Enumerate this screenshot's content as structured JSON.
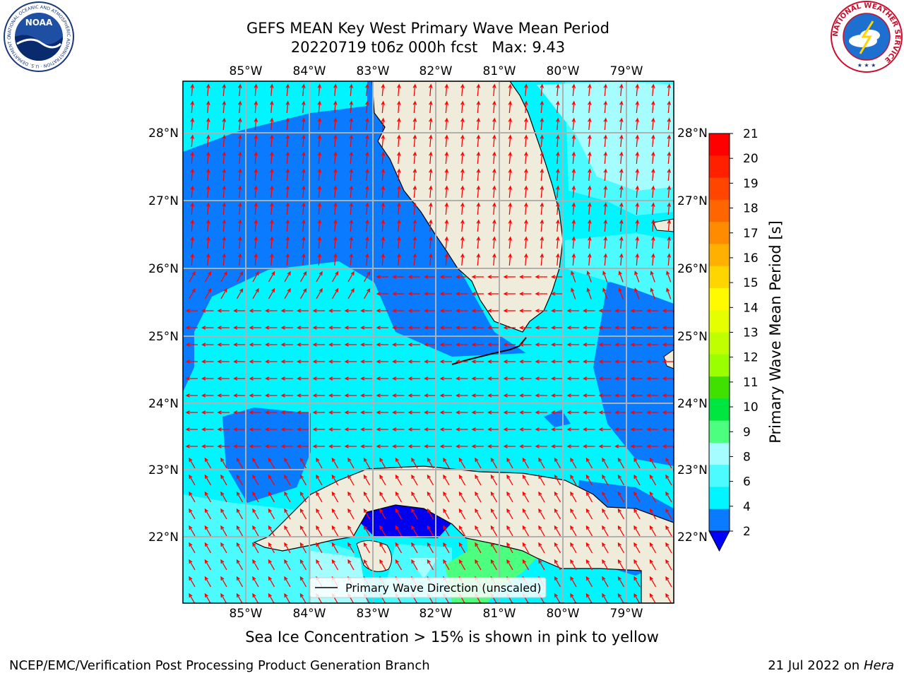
{
  "header": {
    "title_line1": "GEFS MEAN Key West Primary Wave Mean Period",
    "title_line2": "20220719 t06z 000h fcst   Max: 9.43"
  },
  "logos": {
    "left": "NOAA",
    "left_ring_text": "NATIONAL OCEANIC AND ATMOSPHERIC ADMINISTRATION · U.S. DEPARTMENT OF COMMERCE ·",
    "right_ring_text": "NATIONAL WEATHER SERVICE"
  },
  "map": {
    "lon_labels": [
      "85°W",
      "84°W",
      "83°W",
      "82°W",
      "81°W",
      "80°W",
      "79°W"
    ],
    "lat_labels": [
      "28°N",
      "27°N",
      "26°N",
      "25°N",
      "24°N",
      "23°N",
      "22°N"
    ],
    "legend_label": "Primary Wave Direction (unscaled)",
    "grid": true,
    "colors": {
      "land": "#efecdc",
      "c2_4": "#0a7bff",
      "c4_6": "#00f5ff",
      "c6_8": "#4cfbff",
      "c8_9": "#a6fdff",
      "c9_10": "#4cff7f",
      "below_2": "#0000f0",
      "arrow": "#ff0000"
    }
  },
  "colorbar": {
    "label": "Primary Wave Mean Period [s]",
    "ticks": [
      "21",
      "20",
      "19",
      "18",
      "17",
      "16",
      "15",
      "14",
      "13",
      "12",
      "11",
      "10",
      "9",
      "8",
      "6",
      "4",
      "2"
    ],
    "colors": [
      "#ff0000",
      "#ff2000",
      "#ff4500",
      "#ff6500",
      "#ff8b00",
      "#ffb000",
      "#ffd500",
      "#fffa00",
      "#e6ff00",
      "#c0ff00",
      "#9aff00",
      "#40e000",
      "#00e640",
      "#4cff7f",
      "#a6fdff",
      "#4cfbff",
      "#00f5ff",
      "#0a7bff"
    ],
    "extend_color": "#0000ff"
  },
  "footer": {
    "subtitle": "Sea Ice Concentration > 15% is shown in pink to yellow",
    "left": "NCEP/EMC/Verification Post Processing Product Generation Branch",
    "right_date": "21 Jul 2022 on ",
    "right_machine": "Hera"
  }
}
